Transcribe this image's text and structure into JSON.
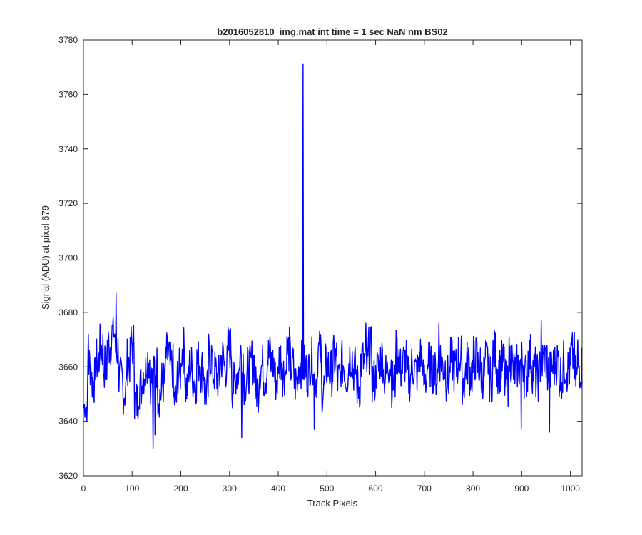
{
  "chart_data": {
    "type": "line",
    "title": "b2016052810_img.mat int time = 1 sec  NaN nm BS02",
    "xlabel": "Track Pixels",
    "ylabel": "Signal (ADU) at pixel 679",
    "xlim": [
      0,
      1024
    ],
    "ylim": [
      3620,
      3780
    ],
    "xticks": [
      0,
      100,
      200,
      300,
      400,
      500,
      600,
      700,
      800,
      900,
      1000
    ],
    "yticks": [
      3620,
      3640,
      3660,
      3680,
      3700,
      3720,
      3740,
      3760,
      3780
    ],
    "grid": false,
    "legend": "none",
    "line_color": "#0000ff",
    "series": [
      {
        "x_start": 1,
        "x_step": 8,
        "y": [
          3645,
          3661,
          3655,
          3662,
          3667,
          3660,
          3668,
          3672,
          3666,
          3655,
          3651,
          3662,
          3668,
          3647,
          3653,
          3658,
          3663,
          3655,
          3660,
          3650,
          3654,
          3664,
          3660,
          3648,
          3658,
          3666,
          3653,
          3660,
          3655,
          3662,
          3659,
          3651,
          3664,
          3658,
          3656,
          3663,
          3660,
          3667,
          3653,
          3658,
          3665,
          3655,
          3659,
          3662,
          3652,
          3660,
          3657,
          3664,
          3661,
          3655,
          3663,
          3658,
          3666,
          3660,
          3654,
          3661,
          3771,
          3658,
          3662,
          3656,
          3665,
          3652,
          3660,
          3658,
          3663,
          3655,
          3661,
          3657,
          3664,
          3659,
          3653,
          3662,
          3660,
          3666,
          3655,
          3659,
          3663,
          3657,
          3661,
          3654,
          3665,
          3659,
          3662,
          3656,
          3660,
          3658,
          3664,
          3655,
          3661,
          3659,
          3657,
          3663,
          3660,
          3656,
          3662,
          3659,
          3664,
          3655,
          3661,
          3658,
          3663,
          3660,
          3657,
          3662,
          3656,
          3665,
          3659,
          3661,
          3654,
          3663,
          3658,
          3660,
          3662,
          3657,
          3664,
          3659,
          3656,
          3661,
          3663,
          3658,
          3660,
          3662,
          3657,
          3661,
          3659,
          3664,
          3656,
          3660
        ],
        "peaks": [
          {
            "x": 7,
            "y": 3640
          },
          {
            "x": 10,
            "y": 3672
          },
          {
            "x": 67,
            "y": 3687
          },
          {
            "x": 143,
            "y": 3630
          },
          {
            "x": 147,
            "y": 3635
          },
          {
            "x": 325,
            "y": 3634
          },
          {
            "x": 451,
            "y": 3771
          },
          {
            "x": 474,
            "y": 3637
          },
          {
            "x": 580,
            "y": 3676
          },
          {
            "x": 730,
            "y": 3676
          },
          {
            "x": 899,
            "y": 3637
          },
          {
            "x": 940,
            "y": 3677
          },
          {
            "x": 957,
            "y": 3636
          },
          {
            "x": 1015,
            "y": 3670
          }
        ]
      }
    ]
  }
}
